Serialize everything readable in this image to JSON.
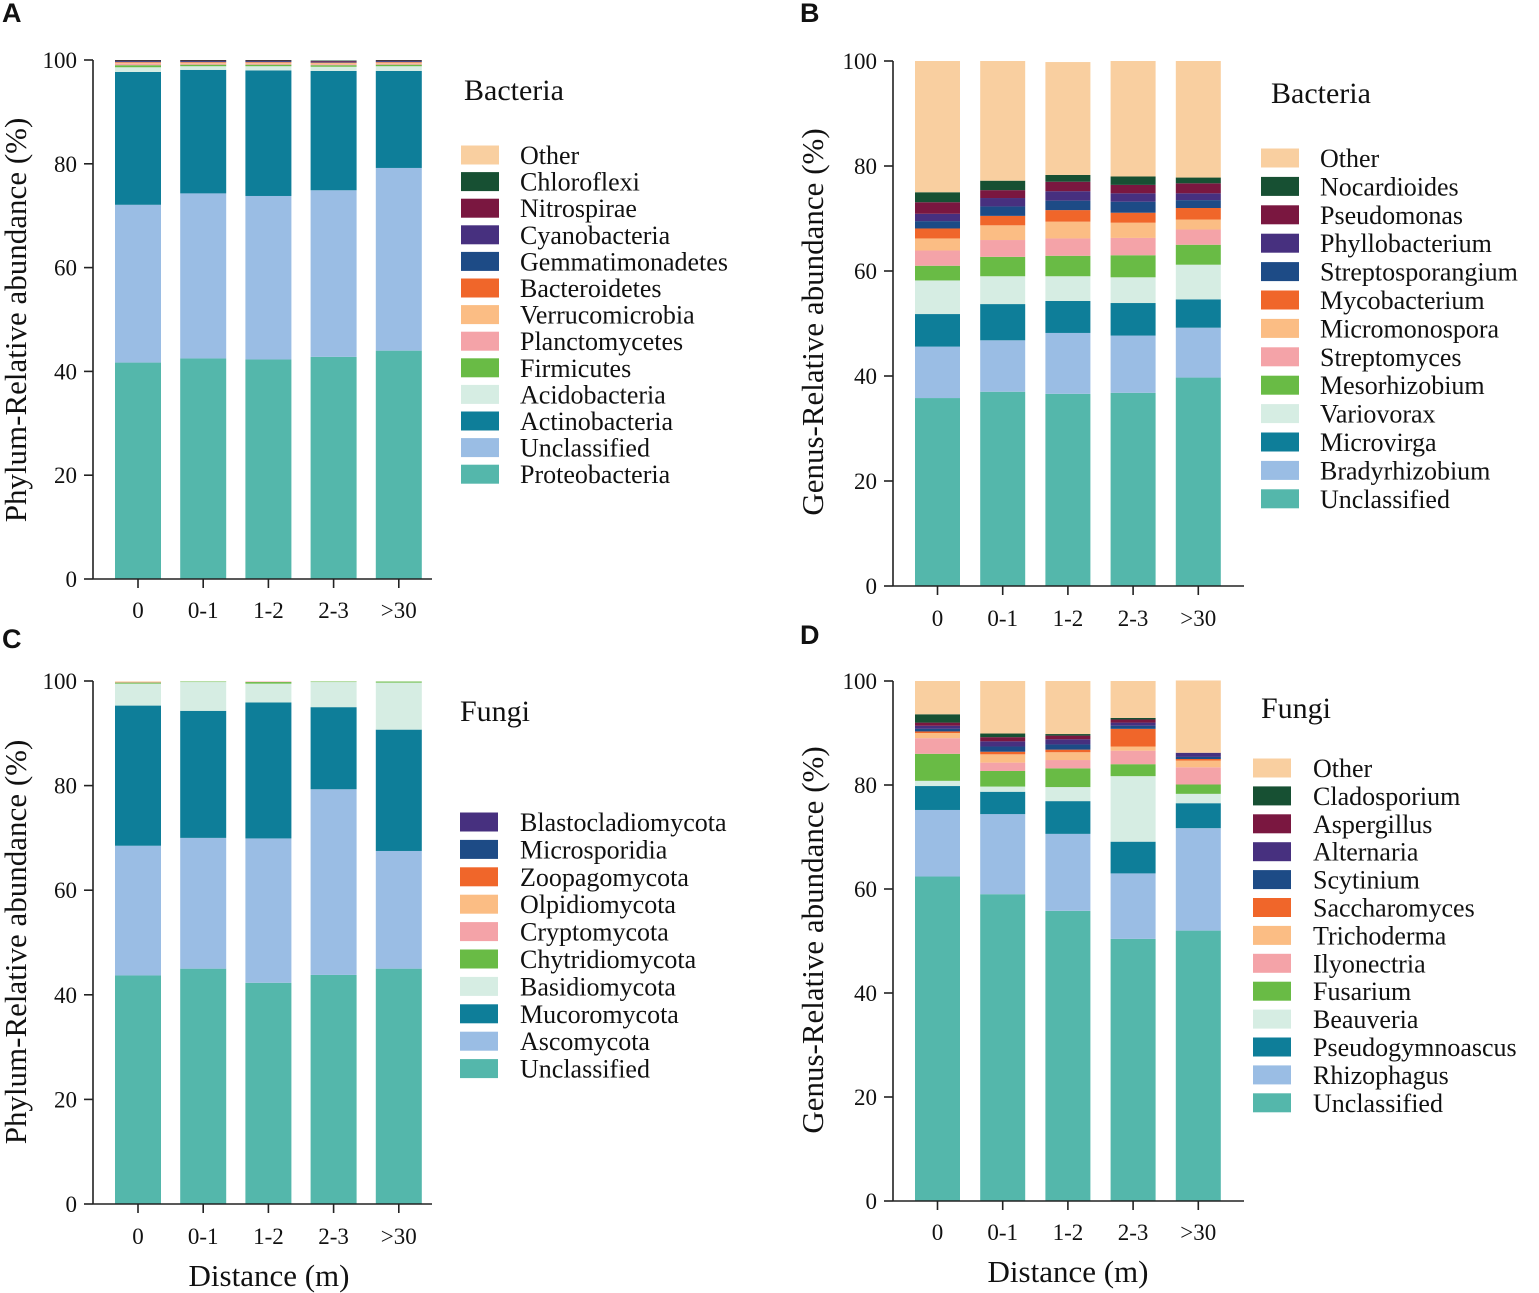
{
  "x_axis_title": "Distance (m)",
  "chart_data": [
    {
      "panel": "A",
      "type": "bar",
      "stacked": true,
      "title": "Bacteria",
      "ylabel": "Phylum-Relative abundance (%)",
      "ylim": [
        0,
        100
      ],
      "yticks": [
        0,
        20,
        40,
        60,
        80,
        100
      ],
      "categories": [
        "0",
        "0-1",
        "1-2",
        "2-3",
        ">30"
      ],
      "series": [
        {
          "name": "Proteobacteria",
          "color": "#54b7ab",
          "values": [
            41.7,
            42.5,
            42.3,
            42.8,
            44.0
          ]
        },
        {
          "name": "Unclassified",
          "color": "#9abde4",
          "values": [
            30.4,
            31.8,
            31.5,
            32.1,
            35.2
          ]
        },
        {
          "name": "Actinobacteria",
          "color": "#0e7e99",
          "values": [
            25.6,
            23.8,
            24.2,
            23.0,
            18.7
          ]
        },
        {
          "name": "Acidobacteria",
          "color": "#d6ede3",
          "values": [
            0.9,
            0.7,
            0.8,
            0.8,
            0.9
          ]
        },
        {
          "name": "Firmicutes",
          "color": "#69bb45",
          "values": [
            0.4,
            0.3,
            0.3,
            0.3,
            0.3
          ]
        },
        {
          "name": "Planctomycetes",
          "color": "#f4a3a8",
          "values": [
            0.3,
            0.2,
            0.2,
            0.2,
            0.2
          ]
        },
        {
          "name": "Verrucomicrobia",
          "color": "#fbbd84",
          "values": [
            0.2,
            0.2,
            0.2,
            0.2,
            0.2
          ]
        },
        {
          "name": "Bacteroidetes",
          "color": "#f0662a",
          "values": [
            0.1,
            0.1,
            0.1,
            0.1,
            0.1
          ]
        },
        {
          "name": "Gemmatimonadetes",
          "color": "#1d4b86",
          "values": [
            0.1,
            0.1,
            0.1,
            0.1,
            0.1
          ]
        },
        {
          "name": "Cyanobacteria",
          "color": "#47307f",
          "values": [
            0.1,
            0.1,
            0.1,
            0.1,
            0.1
          ]
        },
        {
          "name": "Nitrospirae",
          "color": "#7a1740",
          "values": [
            0.1,
            0.1,
            0.1,
            0.1,
            0.1
          ]
        },
        {
          "name": "Chloroflexi",
          "color": "#175033",
          "values": [
            0.1,
            0.1,
            0.1,
            0.1,
            0.1
          ]
        },
        {
          "name": "Other",
          "color": "#f9cfa0",
          "values": [
            0.0,
            0.0,
            0.0,
            0.0,
            0.0
          ]
        }
      ]
    },
    {
      "panel": "B",
      "type": "bar",
      "stacked": true,
      "title": "Bacteria",
      "ylabel": "Genus-Relative abundance (%)",
      "ylim": [
        0,
        100
      ],
      "yticks": [
        0,
        20,
        40,
        60,
        80,
        100
      ],
      "categories": [
        "0",
        "0-1",
        "1-2",
        "2-3",
        ">30"
      ],
      "series": [
        {
          "name": "Unclassified",
          "color": "#54b7ab",
          "values": [
            35.8,
            37.0,
            36.6,
            36.8,
            39.7
          ]
        },
        {
          "name": "Bradyrhizobium",
          "color": "#9abde4",
          "values": [
            9.8,
            9.8,
            11.6,
            10.9,
            9.5
          ]
        },
        {
          "name": "Microvirga",
          "color": "#0e7e99",
          "values": [
            6.2,
            6.9,
            6.1,
            6.2,
            5.4
          ]
        },
        {
          "name": "Variovorax",
          "color": "#d6ede3",
          "values": [
            6.4,
            5.3,
            4.7,
            4.9,
            6.6
          ]
        },
        {
          "name": "Mesorhizobium",
          "color": "#69bb45",
          "values": [
            2.8,
            3.7,
            3.9,
            4.2,
            3.8
          ]
        },
        {
          "name": "Streptomyces",
          "color": "#f4a3a8",
          "values": [
            2.9,
            3.2,
            3.3,
            3.3,
            2.9
          ]
        },
        {
          "name": "Micromonospora",
          "color": "#fbbd84",
          "values": [
            2.3,
            2.8,
            3.2,
            2.9,
            1.9
          ]
        },
        {
          "name": "Mycobacterium",
          "color": "#f0662a",
          "values": [
            1.9,
            1.8,
            2.2,
            1.9,
            2.2
          ]
        },
        {
          "name": "Streptosporangium",
          "color": "#1d4b86",
          "values": [
            1.4,
            1.8,
            1.8,
            2.1,
            1.5
          ]
        },
        {
          "name": "Phyllobacterium",
          "color": "#47307f",
          "values": [
            1.4,
            1.6,
            1.8,
            1.6,
            1.3
          ]
        },
        {
          "name": "Pseudomonas",
          "color": "#7a1740",
          "values": [
            2.2,
            1.5,
            1.8,
            1.6,
            1.9
          ]
        },
        {
          "name": "Nocardioides",
          "color": "#175033",
          "values": [
            1.9,
            1.8,
            1.3,
            1.6,
            1.1
          ]
        },
        {
          "name": "Other",
          "color": "#f9cfa0",
          "values": [
            25.0,
            22.8,
            21.5,
            22.0,
            22.2
          ]
        }
      ]
    },
    {
      "panel": "C",
      "type": "bar",
      "stacked": true,
      "title": "Fungi",
      "ylabel": "Phylum-Relative abundance (%)",
      "ylim": [
        0,
        100
      ],
      "yticks": [
        0,
        20,
        40,
        60,
        80,
        100
      ],
      "categories": [
        "0",
        "0-1",
        "1-2",
        "2-3",
        ">30"
      ],
      "series": [
        {
          "name": "Unclassified",
          "color": "#54b7ab",
          "values": [
            43.7,
            45.0,
            42.3,
            43.8,
            45.0
          ]
        },
        {
          "name": "Ascomycota",
          "color": "#9abde4",
          "values": [
            24.8,
            25.0,
            27.6,
            35.5,
            22.5
          ]
        },
        {
          "name": "Mucoromycota",
          "color": "#0e7e99",
          "values": [
            26.8,
            24.3,
            26.0,
            15.7,
            23.2
          ]
        },
        {
          "name": "Basidiomycota",
          "color": "#d6ede3",
          "values": [
            4.2,
            5.5,
            3.6,
            4.8,
            9.0
          ]
        },
        {
          "name": "Chytridiomycota",
          "color": "#69bb45",
          "values": [
            0.2,
            0.1,
            0.3,
            0.1,
            0.2
          ]
        },
        {
          "name": "Cryptomycota",
          "color": "#f4a3a8",
          "values": [
            0.1,
            0.0,
            0.1,
            0.0,
            0.0
          ]
        },
        {
          "name": "Olpidiomycota",
          "color": "#fbbd84",
          "values": [
            0.1,
            0.0,
            0.0,
            0.0,
            0.0
          ]
        },
        {
          "name": "Zoopagomycota",
          "color": "#f0662a",
          "values": [
            0.0,
            0.0,
            0.0,
            0.0,
            0.0
          ]
        },
        {
          "name": "Microsporidia",
          "color": "#1d4b86",
          "values": [
            0.0,
            0.0,
            0.0,
            0.0,
            0.0
          ]
        },
        {
          "name": "Blastocladiomycota",
          "color": "#47307f",
          "values": [
            0.0,
            0.0,
            0.0,
            0.0,
            0.0
          ]
        }
      ]
    },
    {
      "panel": "D",
      "type": "bar",
      "stacked": true,
      "title": "Fungi",
      "ylabel": "Genus-Relative abundance (%)",
      "ylim": [
        0,
        100
      ],
      "yticks": [
        0,
        20,
        40,
        60,
        80,
        100
      ],
      "categories": [
        "0",
        "0-1",
        "1-2",
        "2-3",
        ">30"
      ],
      "series": [
        {
          "name": "Unclassified",
          "color": "#54b7ab",
          "values": [
            62.4,
            59.0,
            55.8,
            50.4,
            52.0
          ]
        },
        {
          "name": "Rhizophagus",
          "color": "#9abde4",
          "values": [
            12.8,
            15.4,
            14.8,
            12.6,
            19.7
          ]
        },
        {
          "name": "Pseudogymnoascus",
          "color": "#0e7e99",
          "values": [
            4.6,
            4.3,
            6.3,
            6.1,
            4.8
          ]
        },
        {
          "name": "Beauveria",
          "color": "#d6ede3",
          "values": [
            1.0,
            1.0,
            2.7,
            12.6,
            1.8
          ]
        },
        {
          "name": "Fusarium",
          "color": "#69bb45",
          "values": [
            5.2,
            3.0,
            3.6,
            2.3,
            1.8
          ]
        },
        {
          "name": "Ilyonectria",
          "color": "#f4a3a8",
          "values": [
            3.0,
            1.6,
            1.6,
            2.6,
            3.3
          ]
        },
        {
          "name": "Trichoderma",
          "color": "#fbbd84",
          "values": [
            1.0,
            1.6,
            1.5,
            0.8,
            1.3
          ]
        },
        {
          "name": "Saccharomyces",
          "color": "#f0662a",
          "values": [
            0.3,
            0.5,
            0.5,
            3.4,
            0.3
          ]
        },
        {
          "name": "Scytinium",
          "color": "#1d4b86",
          "values": [
            0.5,
            1.0,
            1.0,
            0.6,
            0.4
          ]
        },
        {
          "name": "Alternaria",
          "color": "#47307f",
          "values": [
            0.6,
            1.0,
            1.0,
            0.6,
            0.8
          ]
        },
        {
          "name": "Aspergillus",
          "color": "#7a1740",
          "values": [
            0.6,
            0.8,
            0.7,
            0.6,
            0.0
          ]
        },
        {
          "name": "Cladosporium",
          "color": "#175033",
          "values": [
            1.6,
            0.7,
            0.3,
            0.3,
            0.0
          ]
        },
        {
          "name": "Other",
          "color": "#f9cfa0",
          "values": [
            6.4,
            10.1,
            10.2,
            7.1,
            13.9
          ]
        }
      ]
    }
  ]
}
